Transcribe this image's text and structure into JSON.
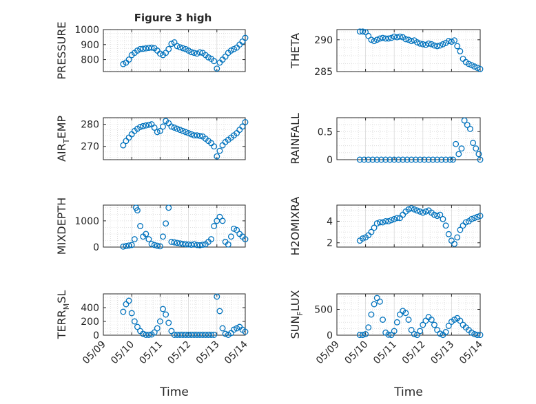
{
  "figure_title": "Figure 3 high",
  "x_ticks": [
    "05/09",
    "05/10",
    "05/11",
    "05/12",
    "05/13",
    "05/14"
  ],
  "x_label": "Time",
  "colors": {
    "marker": "#0072BD",
    "grid": "#d9d9d9",
    "axis": "#262626"
  },
  "chart_data": [
    {
      "type": "scatter",
      "ylabel": "PRESSURE",
      "ylabel_sub": "",
      "ylabel_tail": "",
      "ylim": [
        720,
        1000
      ],
      "yticks": [
        800,
        900,
        1000
      ],
      "ytick_labels": [
        "800",
        "900",
        "1000"
      ],
      "x": [
        0.7,
        0.8,
        0.9,
        1.0,
        1.1,
        1.2,
        1.3,
        1.4,
        1.5,
        1.6,
        1.7,
        1.8,
        1.9,
        2.0,
        2.1,
        2.2,
        2.3,
        2.4,
        2.5,
        2.6,
        2.7,
        2.8,
        2.9,
        3.0,
        3.1,
        3.2,
        3.3,
        3.4,
        3.5,
        3.6,
        3.7,
        3.8,
        3.9,
        4.0,
        4.1,
        4.2,
        4.3,
        4.4,
        4.5,
        4.6,
        4.7,
        4.8,
        4.9,
        5.0
      ],
      "y": [
        770,
        780,
        800,
        830,
        845,
        860,
        870,
        872,
        875,
        878,
        880,
        876,
        860,
        840,
        830,
        845,
        870,
        905,
        915,
        890,
        882,
        876,
        870,
        860,
        850,
        845,
        840,
        848,
        845,
        830,
        815,
        805,
        790,
        740,
        780,
        800,
        820,
        845,
        860,
        870,
        880,
        900,
        920,
        945
      ]
    },
    {
      "type": "scatter",
      "ylabel": "THETA",
      "ylabel_sub": "",
      "ylabel_tail": "",
      "ylim": [
        285,
        291.6
      ],
      "yticks": [
        285,
        290
      ],
      "ytick_labels": [
        "285",
        "290"
      ],
      "x": [
        0.8,
        0.9,
        1.0,
        1.1,
        1.2,
        1.3,
        1.4,
        1.5,
        1.6,
        1.7,
        1.8,
        1.9,
        2.0,
        2.1,
        2.2,
        2.3,
        2.4,
        2.5,
        2.6,
        2.7,
        2.8,
        2.9,
        3.0,
        3.1,
        3.2,
        3.3,
        3.4,
        3.5,
        3.6,
        3.7,
        3.8,
        3.9,
        4.0,
        4.1,
        4.2,
        4.3,
        4.4,
        4.5,
        4.6,
        4.7,
        4.8,
        4.9,
        5.0
      ],
      "y": [
        291.3,
        291.3,
        291.2,
        290.6,
        290.0,
        289.8,
        290.0,
        290.2,
        290.3,
        290.2,
        290.2,
        290.3,
        290.5,
        290.4,
        290.5,
        290.4,
        290.1,
        290.0,
        289.8,
        289.9,
        289.6,
        289.4,
        289.3,
        289.2,
        289.4,
        289.3,
        289.1,
        289.0,
        289.1,
        289.3,
        289.5,
        289.8,
        289.7,
        289.9,
        289.0,
        288.2,
        287.0,
        286.5,
        286.2,
        286.0,
        285.8,
        285.6,
        285.4
      ]
    },
    {
      "type": "scatter",
      "ylabel": "AIR",
      "ylabel_sub": "T",
      "ylabel_tail": "EMP",
      "ylim": [
        264,
        283
      ],
      "yticks": [
        270,
        280
      ],
      "ytick_labels": [
        "270",
        "280"
      ],
      "x": [
        0.7,
        0.8,
        0.9,
        1.0,
        1.1,
        1.2,
        1.3,
        1.4,
        1.5,
        1.6,
        1.7,
        1.8,
        1.9,
        2.0,
        2.1,
        2.2,
        2.3,
        2.4,
        2.5,
        2.6,
        2.7,
        2.8,
        2.9,
        3.0,
        3.1,
        3.2,
        3.3,
        3.4,
        3.5,
        3.6,
        3.7,
        3.8,
        3.9,
        4.0,
        4.1,
        4.2,
        4.3,
        4.4,
        4.5,
        4.6,
        4.7,
        4.8,
        4.9,
        5.0
      ],
      "y": [
        270.5,
        272.5,
        274.0,
        275.5,
        277.0,
        278.0,
        278.8,
        279.2,
        279.5,
        279.8,
        280.0,
        278.5,
        276.5,
        277.0,
        279.0,
        281.5,
        280.5,
        279.0,
        278.5,
        278.0,
        277.5,
        277.0,
        276.5,
        276.0,
        275.5,
        275.0,
        275.0,
        274.8,
        274.5,
        273.5,
        272.5,
        271.5,
        270.0,
        265.5,
        268.0,
        270.5,
        272.0,
        273.0,
        274.0,
        275.0,
        276.0,
        277.5,
        279.0,
        281.0
      ]
    },
    {
      "type": "scatter",
      "ylabel": "RAINFALL",
      "ylabel_sub": "",
      "ylabel_tail": "",
      "ylim": [
        0,
        0.75
      ],
      "yticks": [
        0,
        0.5
      ],
      "ytick_labels": [
        "0",
        "0.5"
      ],
      "x": [
        0.8,
        0.95,
        1.1,
        1.25,
        1.4,
        1.55,
        1.7,
        1.85,
        2.0,
        2.15,
        2.3,
        2.45,
        2.6,
        2.75,
        2.9,
        3.05,
        3.2,
        3.35,
        3.5,
        3.65,
        3.8,
        3.95,
        4.05,
        4.15,
        4.25,
        4.35,
        4.45,
        4.55,
        4.65,
        4.75,
        4.85,
        4.95,
        5.0
      ],
      "y": [
        0,
        0,
        0,
        0,
        0,
        0,
        0,
        0,
        0,
        0,
        0,
        0,
        0,
        0,
        0,
        0,
        0,
        0,
        0,
        0,
        0,
        0,
        0,
        0.28,
        0.1,
        0.2,
        0.7,
        0.62,
        0.55,
        0.3,
        0.2,
        0.1,
        0
      ]
    },
    {
      "type": "scatter",
      "ylabel": "MIXDEPTH",
      "ylabel_sub": "",
      "ylabel_tail": "",
      "ylim": [
        0,
        1600
      ],
      "yticks": [
        0,
        1000
      ],
      "ytick_labels": [
        "0",
        "1000"
      ],
      "x": [
        0.7,
        0.8,
        0.9,
        1.0,
        1.1,
        1.15,
        1.2,
        1.3,
        1.4,
        1.5,
        1.6,
        1.7,
        1.8,
        1.9,
        2.0,
        2.1,
        2.2,
        2.3,
        2.4,
        2.5,
        2.6,
        2.7,
        2.8,
        2.9,
        3.0,
        3.1,
        3.2,
        3.3,
        3.4,
        3.5,
        3.6,
        3.7,
        3.8,
        3.9,
        4.0,
        4.1,
        4.2,
        4.3,
        4.4,
        4.5,
        4.6,
        4.7,
        4.8,
        4.9,
        5.0
      ],
      "y": [
        20,
        40,
        60,
        80,
        300,
        1500,
        1400,
        800,
        400,
        500,
        300,
        120,
        80,
        50,
        30,
        400,
        900,
        1500,
        200,
        180,
        160,
        140,
        120,
        110,
        100,
        90,
        110,
        80,
        70,
        90,
        110,
        200,
        300,
        800,
        1000,
        1150,
        1000,
        200,
        100,
        400,
        700,
        650,
        500,
        400,
        300
      ]
    },
    {
      "type": "scatter",
      "ylabel": "H2OMIXRA",
      "ylabel_sub": "",
      "ylabel_tail": "",
      "ylim": [
        1.6,
        5.5
      ],
      "yticks": [
        2,
        4
      ],
      "ytick_labels": [
        "2",
        "4"
      ],
      "x": [
        0.8,
        0.9,
        1.0,
        1.1,
        1.2,
        1.3,
        1.4,
        1.5,
        1.6,
        1.7,
        1.8,
        1.9,
        2.0,
        2.1,
        2.2,
        2.3,
        2.4,
        2.5,
        2.6,
        2.7,
        2.8,
        2.9,
        3.0,
        3.1,
        3.2,
        3.3,
        3.4,
        3.5,
        3.6,
        3.7,
        3.8,
        3.9,
        4.0,
        4.1,
        4.2,
        4.3,
        4.4,
        4.5,
        4.6,
        4.7,
        4.8,
        4.9,
        5.0
      ],
      "y": [
        2.2,
        2.4,
        2.5,
        2.7,
        3.0,
        3.4,
        3.8,
        3.9,
        3.9,
        4.0,
        4.0,
        4.1,
        4.2,
        4.3,
        4.3,
        4.6,
        4.9,
        5.1,
        5.2,
        5.1,
        5.0,
        4.9,
        4.8,
        4.9,
        5.0,
        4.8,
        4.6,
        4.5,
        4.6,
        4.2,
        3.6,
        2.8,
        2.2,
        1.9,
        2.5,
        3.2,
        3.6,
        3.9,
        4.0,
        4.2,
        4.3,
        4.4,
        4.5
      ]
    },
    {
      "type": "scatter",
      "ylabel": "TERR",
      "ylabel_sub": "M",
      "ylabel_tail": "SL",
      "ylim": [
        0,
        600
      ],
      "yticks": [
        0,
        200,
        400
      ],
      "ytick_labels": [
        "0",
        "200",
        "400"
      ],
      "x": [
        0.7,
        0.8,
        0.9,
        1.0,
        1.1,
        1.2,
        1.3,
        1.4,
        1.5,
        1.6,
        1.7,
        1.8,
        1.9,
        2.0,
        2.1,
        2.2,
        2.3,
        2.4,
        2.5,
        2.6,
        2.7,
        2.8,
        2.9,
        3.0,
        3.1,
        3.2,
        3.3,
        3.4,
        3.5,
        3.6,
        3.7,
        3.8,
        3.9,
        4.0,
        4.1,
        4.2,
        4.3,
        4.4,
        4.5,
        4.6,
        4.7,
        4.8,
        4.9,
        5.0
      ],
      "y": [
        340,
        450,
        500,
        320,
        200,
        120,
        60,
        20,
        5,
        5,
        10,
        40,
        100,
        200,
        380,
        300,
        180,
        60,
        5,
        5,
        5,
        5,
        5,
        5,
        5,
        5,
        5,
        5,
        5,
        5,
        5,
        5,
        5,
        560,
        350,
        100,
        20,
        5,
        30,
        80,
        100,
        120,
        80,
        50
      ]
    },
    {
      "type": "scatter",
      "ylabel": "SUN",
      "ylabel_sub": "F",
      "ylabel_tail": "LUX",
      "ylim": [
        0,
        800
      ],
      "yticks": [
        0,
        500
      ],
      "ytick_labels": [
        "0",
        "500"
      ],
      "x": [
        0.8,
        0.9,
        1.0,
        1.1,
        1.2,
        1.3,
        1.4,
        1.5,
        1.6,
        1.7,
        1.8,
        1.9,
        2.0,
        2.1,
        2.2,
        2.3,
        2.4,
        2.5,
        2.6,
        2.7,
        2.8,
        2.9,
        3.0,
        3.1,
        3.2,
        3.3,
        3.4,
        3.5,
        3.6,
        3.7,
        3.8,
        3.9,
        4.0,
        4.1,
        4.2,
        4.3,
        4.4,
        4.5,
        4.6,
        4.7,
        4.8,
        4.9,
        5.0
      ],
      "y": [
        5,
        5,
        20,
        150,
        400,
        600,
        720,
        650,
        300,
        50,
        10,
        5,
        80,
        250,
        400,
        470,
        430,
        300,
        100,
        20,
        5,
        80,
        200,
        280,
        350,
        300,
        200,
        100,
        30,
        5,
        60,
        180,
        260,
        300,
        330,
        280,
        200,
        150,
        100,
        50,
        20,
        5,
        5
      ]
    }
  ]
}
